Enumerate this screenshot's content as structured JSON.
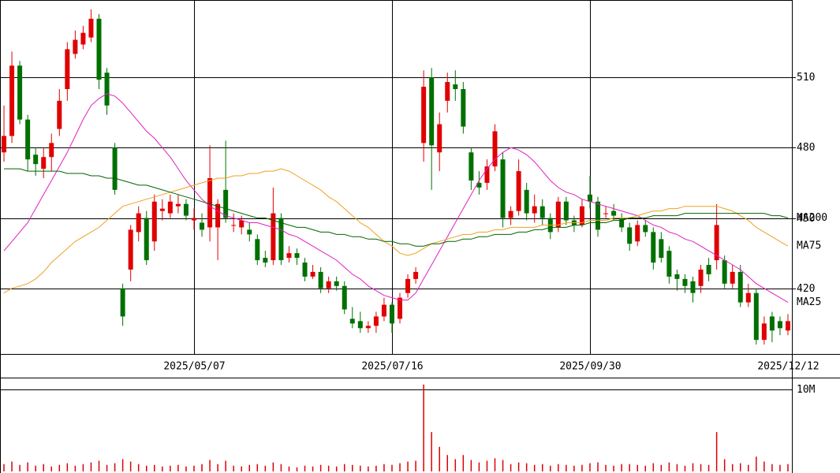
{
  "chart_data": {
    "type": "candlestick",
    "categories": [
      null,
      null,
      null,
      null,
      null,
      null,
      null,
      null,
      null,
      null,
      null,
      null,
      null,
      null,
      null,
      null,
      null,
      null,
      null,
      null,
      null,
      null,
      null,
      null,
      "2025/05/07",
      null,
      null,
      null,
      null,
      null,
      null,
      null,
      null,
      null,
      null,
      null,
      null,
      null,
      null,
      null,
      null,
      null,
      null,
      null,
      null,
      null,
      null,
      null,
      null,
      "2025/07/16",
      null,
      null,
      null,
      null,
      null,
      null,
      null,
      null,
      null,
      null,
      null,
      null,
      null,
      null,
      null,
      null,
      null,
      null,
      null,
      null,
      null,
      null,
      null,
      null,
      "2025/09/30",
      null,
      null,
      null,
      null,
      null,
      null,
      null,
      null,
      null,
      null,
      null,
      null,
      null,
      null,
      null,
      null,
      null,
      null,
      null,
      null,
      null,
      null,
      null,
      null,
      "2025/12/12"
    ],
    "open": [
      478,
      485,
      515,
      492,
      477,
      471,
      476,
      488,
      505,
      520,
      524,
      527,
      535,
      512,
      480,
      420,
      428,
      444,
      450,
      440,
      453,
      452,
      455,
      456,
      449,
      448,
      446,
      446,
      462,
      447,
      446,
      445,
      441,
      433,
      432,
      450,
      433,
      435,
      431,
      425,
      427,
      420,
      423,
      421,
      407,
      406,
      403,
      404,
      408,
      413,
      407,
      418,
      424,
      482,
      510,
      478,
      500,
      507,
      505,
      478,
      465,
      465,
      472,
      475,
      450,
      453,
      462,
      452,
      455,
      450,
      446,
      457,
      449,
      447,
      460,
      457,
      452,
      453,
      450,
      446,
      440,
      447,
      444,
      441,
      436,
      426,
      424,
      423,
      421,
      430,
      432,
      432,
      422,
      427,
      414,
      418,
      398,
      408,
      406,
      402
    ],
    "high": [
      498,
      521,
      517,
      494,
      480,
      480,
      486,
      505,
      525,
      530,
      532,
      539,
      537,
      514,
      482,
      422,
      447,
      455,
      453,
      460,
      458,
      460,
      460,
      458,
      454,
      452,
      481,
      458,
      483,
      452,
      451,
      448,
      443,
      436,
      463,
      452,
      438,
      437,
      433,
      430,
      429,
      425,
      425,
      423,
      412,
      410,
      406,
      410,
      416,
      414,
      418,
      426,
      429,
      513,
      514,
      495,
      512,
      513,
      508,
      480,
      470,
      475,
      490,
      478,
      455,
      475,
      465,
      460,
      458,
      452,
      459,
      459,
      451,
      458,
      468,
      459,
      455,
      456,
      452,
      448,
      449,
      449,
      446,
      444,
      438,
      428,
      426,
      425,
      430,
      433,
      456,
      434,
      430,
      430,
      422,
      420,
      408,
      410,
      408,
      409
    ],
    "low": [
      474,
      482,
      490,
      470,
      468,
      467,
      470,
      485,
      500,
      518,
      522,
      525,
      505,
      494,
      460,
      404,
      423,
      440,
      430,
      436,
      449,
      450,
      452,
      449,
      445,
      442,
      440,
      432,
      448,
      444,
      443,
      440,
      430,
      429,
      430,
      430,
      431,
      430,
      423,
      424,
      418,
      418,
      419,
      409,
      403,
      401,
      401,
      401,
      406,
      401,
      405,
      416,
      422,
      474,
      462,
      470,
      495,
      500,
      486,
      462,
      460,
      462,
      470,
      446,
      447,
      451,
      449,
      448,
      447,
      441,
      444,
      447,
      444,
      446,
      454,
      442,
      450,
      449,
      444,
      436,
      438,
      442,
      428,
      431,
      422,
      419,
      418,
      414,
      418,
      423,
      428,
      420,
      420,
      412,
      412,
      396,
      396,
      397,
      400,
      400
    ],
    "close": [
      485,
      515,
      492,
      475,
      473,
      476,
      482,
      500,
      522,
      526,
      529,
      535,
      509,
      498,
      462,
      408,
      445,
      452,
      432,
      457,
      454,
      457,
      456,
      451,
      450,
      445,
      467,
      456,
      450,
      447,
      449,
      443,
      432,
      431,
      452,
      432,
      435,
      433,
      425,
      427,
      420,
      423,
      421,
      411,
      405,
      403,
      404,
      408,
      413,
      405,
      416,
      424,
      427,
      506,
      481,
      490,
      508,
      505,
      489,
      466,
      463,
      472,
      487,
      450,
      453,
      470,
      452,
      455,
      450,
      444,
      457,
      449,
      447,
      455,
      457,
      445,
      452,
      451,
      446,
      439,
      447,
      444,
      431,
      433,
      425,
      424,
      421,
      418,
      428,
      426,
      447,
      422,
      427,
      414,
      418,
      398,
      405,
      402,
      403,
      406
    ],
    "up_color": "#e00000",
    "down_color": "#007000",
    "ylim": [
      392,
      543
    ],
    "yticks": [
      420,
      450,
      480,
      510
    ],
    "grid": true,
    "series": [
      {
        "name": "MA25",
        "color": "#e020c0",
        "values": [
          436,
          440,
          444,
          448,
          454,
          460,
          466,
          472,
          478,
          485,
          492,
          498,
          501,
          503,
          502,
          499,
          495,
          491,
          487,
          484,
          480,
          476,
          471,
          466,
          462,
          458,
          455,
          453,
          451,
          450,
          449,
          448,
          448,
          447,
          446,
          445,
          443,
          442,
          440,
          438,
          436,
          434,
          432,
          429,
          426,
          424,
          421,
          419,
          417,
          416,
          415,
          415,
          418,
          424,
          430,
          436,
          442,
          448,
          454,
          460,
          466,
          471,
          475,
          478,
          480,
          479,
          477,
          474,
          470,
          466,
          463,
          461,
          460,
          458,
          457,
          456,
          455,
          454,
          453,
          452,
          451,
          449,
          447,
          446,
          444,
          443,
          441,
          440,
          438,
          436,
          434,
          432,
          430,
          428,
          425,
          422,
          420,
          418,
          416,
          414
        ]
      },
      {
        "name": "MA75",
        "color": "#f0a020",
        "values": [
          418,
          420,
          421,
          422,
          424,
          427,
          431,
          434,
          437,
          440,
          442,
          444,
          446,
          449,
          452,
          455,
          456,
          457,
          458,
          459,
          460,
          461,
          462,
          463,
          464,
          465,
          466,
          467,
          467,
          468,
          468,
          469,
          469,
          470,
          470,
          471,
          470,
          468,
          466,
          464,
          462,
          459,
          457,
          454,
          451,
          448,
          446,
          443,
          440,
          438,
          435,
          434,
          435,
          437,
          439,
          440,
          441,
          442,
          443,
          443,
          444,
          444,
          445,
          445,
          446,
          446,
          446,
          446,
          447,
          447,
          447,
          448,
          448,
          448,
          449,
          449,
          449,
          450,
          450,
          450,
          451,
          452,
          453,
          453,
          454,
          454,
          455,
          455,
          455,
          455,
          455,
          454,
          453,
          451,
          449,
          446,
          444,
          442,
          440,
          438
        ]
      },
      {
        "name": "MA200",
        "color": "#006400",
        "values": [
          471,
          471,
          471,
          470,
          470,
          470,
          470,
          470,
          469,
          469,
          469,
          468,
          468,
          467,
          467,
          466,
          465,
          464,
          464,
          463,
          462,
          461,
          460,
          459,
          458,
          457,
          456,
          455,
          454,
          453,
          452,
          451,
          450,
          450,
          449,
          448,
          447,
          446,
          446,
          445,
          444,
          444,
          443,
          443,
          442,
          442,
          441,
          441,
          440,
          440,
          439,
          439,
          438,
          438,
          439,
          439,
          440,
          440,
          441,
          441,
          442,
          442,
          443,
          443,
          443,
          444,
          444,
          445,
          445,
          446,
          446,
          446,
          447,
          447,
          448,
          448,
          448,
          449,
          449,
          450,
          450,
          450,
          451,
          451,
          451,
          451,
          452,
          452,
          452,
          452,
          452,
          452,
          452,
          452,
          452,
          452,
          452,
          451,
          451,
          450
        ]
      }
    ],
    "volume": {
      "color": "#e00000",
      "ylim": [
        0,
        11350000
      ],
      "yticks": [
        {
          "value": 10000000,
          "label": "10M"
        }
      ],
      "values": [
        900000,
        1200000,
        800000,
        1100000,
        700000,
        900000,
        600000,
        800000,
        1000000,
        700000,
        900000,
        1100000,
        1300000,
        800000,
        1000000,
        1500000,
        1200000,
        900000,
        700000,
        800000,
        600000,
        700000,
        800000,
        600000,
        700000,
        900000,
        1400000,
        900000,
        1300000,
        700000,
        600000,
        800000,
        900000,
        700000,
        1100000,
        900000,
        600000,
        500000,
        700000,
        600000,
        800000,
        700000,
        600000,
        900000,
        800000,
        700000,
        600000,
        700000,
        900000,
        800000,
        1000000,
        1200000,
        1300000,
        10600000,
        4800000,
        3000000,
        2000000,
        1500000,
        2000000,
        1400000,
        1100000,
        1300000,
        1600000,
        1400000,
        900000,
        1100000,
        1000000,
        800000,
        900000,
        700000,
        900000,
        800000,
        700000,
        800000,
        1000000,
        1100000,
        800000,
        700000,
        900000,
        900000,
        800000,
        700000,
        1000000,
        800000,
        1100000,
        900000,
        700000,
        1000000,
        900000,
        800000,
        4800000,
        1500000,
        900000,
        1000000,
        800000,
        1800000,
        1200000,
        900000,
        800000,
        900000
      ]
    }
  }
}
